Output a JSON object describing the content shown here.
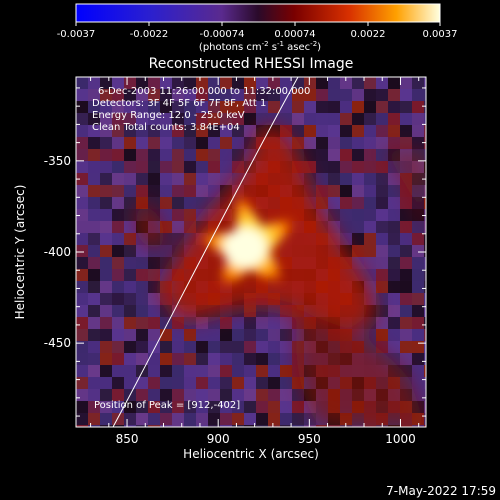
{
  "colorbar": {
    "tick_labels": [
      "-0.0037",
      "-0.0022",
      "-0.00074",
      "0.00074",
      "0.0022",
      "0.0037"
    ],
    "units_text": "(photons cm",
    "units_sup1": "-2",
    "units_mid1": " s",
    "units_sup2": "-1",
    "units_mid2": " asec",
    "units_sup3": "-2",
    "units_end": ")"
  },
  "image": {
    "title": "Reconstructed RHESSI Image",
    "info_lines": [
      "6-Dec-2003 11:26:00.000 to 11:32:00.000",
      "Detectors: 3F 4F 5F 6F 7F 8F, Att 1",
      "Energy Range: 12.0 - 25.0 keV",
      "Clean     Total counts: 3.84E+04"
    ],
    "peak_label": "Position of Peak = [912,-402]",
    "peak": {
      "x": 912,
      "y": -402
    }
  },
  "axes": {
    "xlabel": "Heliocentric X (arcsec)",
    "ylabel": "Heliocentric Y (arcsec)",
    "xticks": [
      "850",
      "900",
      "950",
      "1000"
    ],
    "yticks": [
      "-350",
      "-400",
      "-450"
    ],
    "xlim": [
      822,
      1014
    ],
    "ylim": [
      -496,
      -304
    ]
  },
  "footer": {
    "timestamp": "7-May-2022 17:59"
  },
  "colors": {
    "background": "#000000",
    "foreground": "#ffffff"
  }
}
